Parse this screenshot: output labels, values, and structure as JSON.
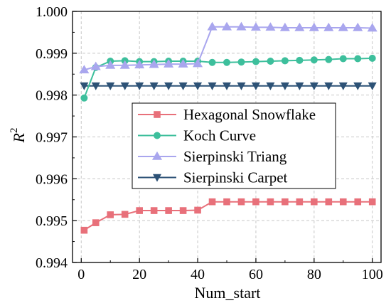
{
  "chart_data": {
    "type": "line",
    "title": "",
    "xlabel": "Num_start",
    "ylabel": "R",
    "ylabel_superscript": "2",
    "xlim": [
      -3,
      103
    ],
    "ylim": [
      0.994,
      1.0
    ],
    "x_ticks": [
      0,
      20,
      40,
      60,
      80,
      100
    ],
    "y_ticks": [
      0.994,
      0.995,
      0.996,
      0.997,
      0.998,
      0.999,
      1.0
    ],
    "x_tick_labels": [
      "0",
      "20",
      "40",
      "60",
      "80",
      "100"
    ],
    "y_tick_labels": [
      "0.994",
      "0.995",
      "0.996",
      "0.997",
      "0.998",
      "0.999",
      "1.000"
    ],
    "grid": true,
    "legend_position": "center-left",
    "x": [
      1,
      5,
      10,
      15,
      20,
      25,
      30,
      35,
      40,
      45,
      50,
      55,
      60,
      65,
      70,
      75,
      80,
      85,
      90,
      95,
      100
    ],
    "series": [
      {
        "name": "Hexagonal Snowflake",
        "color": "#e8707a",
        "marker": "square",
        "values": [
          0.99477,
          0.99495,
          0.99514,
          0.99515,
          0.99524,
          0.99524,
          0.99524,
          0.99524,
          0.99525,
          0.99545,
          0.99545,
          0.99545,
          0.99545,
          0.99545,
          0.99545,
          0.99545,
          0.99545,
          0.99545,
          0.99545,
          0.99545,
          0.99545
        ]
      },
      {
        "name": "Koch Curve",
        "color": "#3dbf9c",
        "marker": "circle",
        "values": [
          0.99793,
          0.99866,
          0.99881,
          0.99882,
          0.9988,
          0.9988,
          0.99881,
          0.99881,
          0.99881,
          0.99878,
          0.99878,
          0.99879,
          0.9988,
          0.99881,
          0.99882,
          0.99883,
          0.99884,
          0.99885,
          0.99887,
          0.99887,
          0.99888
        ]
      },
      {
        "name": "Sierpinski Triang",
        "color": "#a9a6ee",
        "marker": "triangle-up",
        "values": [
          0.9986,
          0.99868,
          0.99871,
          0.99871,
          0.99872,
          0.99873,
          0.99874,
          0.99874,
          0.99875,
          0.99963,
          0.99963,
          0.99963,
          0.99962,
          0.99962,
          0.99961,
          0.99961,
          0.99961,
          0.99961,
          0.99961,
          0.99961,
          0.9996
        ]
      },
      {
        "name": "Sierpinski Carpet",
        "color": "#2d5276",
        "marker": "triangle-down",
        "values": [
          0.99822,
          0.99822,
          0.99822,
          0.99822,
          0.99822,
          0.99822,
          0.99822,
          0.99822,
          0.99822,
          0.99822,
          0.99822,
          0.99822,
          0.99822,
          0.99822,
          0.99822,
          0.99822,
          0.99822,
          0.99822,
          0.99822,
          0.99822,
          0.99822
        ]
      }
    ]
  }
}
